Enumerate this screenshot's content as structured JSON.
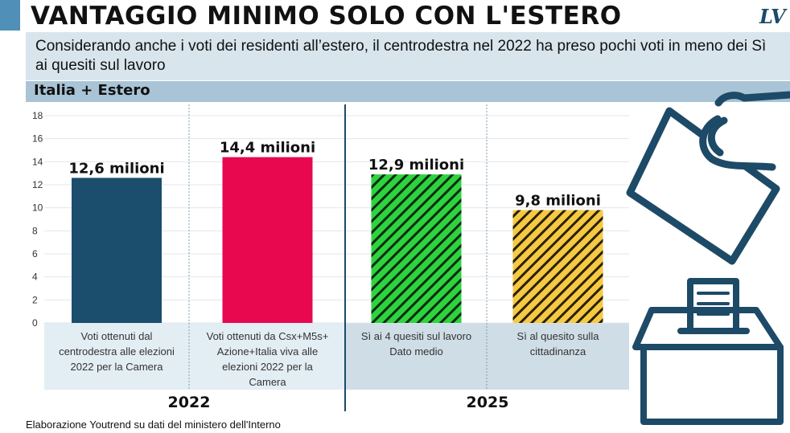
{
  "title": "VANTAGGIO MINIMO SOLO CON L'ESTERO",
  "logo": "LV",
  "subtitle": "Considerando anche i voti dei residenti all’estero, il centrodestra nel 2022 ha preso pochi voti in meno dei Sì ai quesiti sul lavoro",
  "section_label": "Italia + Estero",
  "source": "Elaborazione Youtrend su dati del ministero dell'Interno",
  "colors": {
    "navy": "#1b4d6d",
    "crimson": "#e8084f",
    "green": "#2ed33e",
    "yellow": "#f6c945",
    "panel_light": "#e3eef4",
    "panel_dark": "#cfdde6"
  },
  "chart_data": {
    "type": "bar",
    "ylim": [
      0,
      18
    ],
    "yticks": [
      "0",
      "2",
      "4",
      "6",
      "8",
      "10",
      "12",
      "14",
      "16",
      "18"
    ],
    "groups": [
      "2022",
      "2025"
    ],
    "bars": [
      {
        "value": 12.6,
        "label": "12,6 milioni",
        "category": "Voti ottenuti dal centrodestra alle elezioni 2022 per la Camera",
        "group": "2022",
        "color": "#1b4d6d",
        "pattern": "solid"
      },
      {
        "value": 14.4,
        "label": "14,4 milioni",
        "category": "Voti ottenuti da Csx+M5s+ Azione+Italia viva alle elezioni 2022 per la Camera",
        "group": "2022",
        "color": "#e8084f",
        "pattern": "solid"
      },
      {
        "value": 12.9,
        "label": "12,9 milioni",
        "category": "Sì ai 4 quesiti sul lavoro Dato medio",
        "group": "2025",
        "color": "#2ed33e",
        "pattern": "hatched"
      },
      {
        "value": 9.8,
        "label": "9,8 milioni",
        "category": "Sì al quesito sulla cittadinanza",
        "group": "2025",
        "color": "#f6c945",
        "pattern": "hatched"
      }
    ]
  },
  "icons": [
    "hand-icon",
    "ballot-box-icon"
  ]
}
